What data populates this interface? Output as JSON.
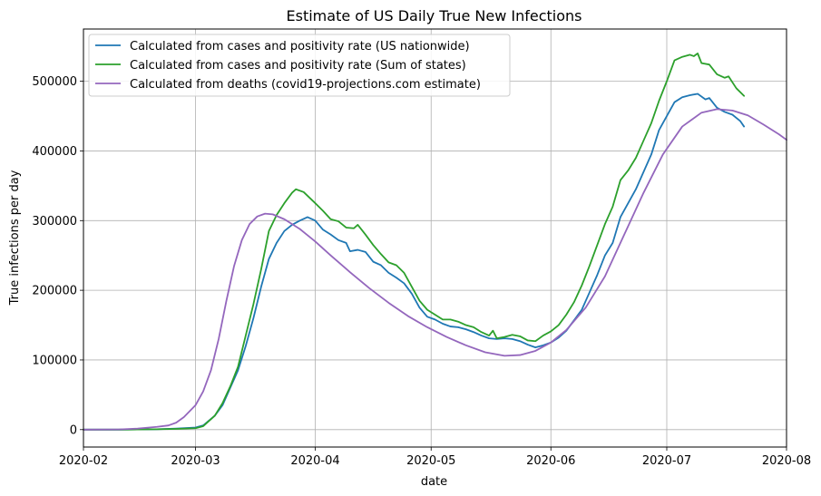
{
  "chart_data": {
    "type": "line",
    "title": "Estimate of US Daily True New Infections",
    "xlabel": "date",
    "ylabel": "True infections per day",
    "xlim": [
      "2020-02-01",
      "2020-08-01"
    ],
    "ylim": [
      -25000,
      575000
    ],
    "grid": true,
    "legend_position": "top-left",
    "x_ticks": [
      "2020-02",
      "2020-03",
      "2020-04",
      "2020-05",
      "2020-06",
      "2020-07",
      "2020-08"
    ],
    "y_ticks": [
      0,
      100000,
      200000,
      300000,
      400000,
      500000
    ],
    "series": [
      {
        "name": "Calculated from cases and positivity rate (US nationwide)",
        "color": "#1f77b4",
        "points": [
          [
            "2020-02-01",
            0
          ],
          [
            "2020-02-10",
            0
          ],
          [
            "2020-02-20",
            500
          ],
          [
            "2020-02-25",
            1500
          ],
          [
            "2020-03-01",
            3000
          ],
          [
            "2020-03-03",
            6000
          ],
          [
            "2020-03-06",
            20000
          ],
          [
            "2020-03-08",
            35000
          ],
          [
            "2020-03-10",
            60000
          ],
          [
            "2020-03-12",
            85000
          ],
          [
            "2020-03-14",
            120000
          ],
          [
            "2020-03-16",
            160000
          ],
          [
            "2020-03-18",
            205000
          ],
          [
            "2020-03-20",
            245000
          ],
          [
            "2020-03-22",
            268000
          ],
          [
            "2020-03-24",
            285000
          ],
          [
            "2020-03-26",
            294000
          ],
          [
            "2020-03-28",
            300000
          ],
          [
            "2020-03-30",
            305000
          ],
          [
            "2020-04-01",
            300000
          ],
          [
            "2020-04-03",
            287000
          ],
          [
            "2020-04-05",
            280000
          ],
          [
            "2020-04-07",
            272000
          ],
          [
            "2020-04-09",
            268000
          ],
          [
            "2020-04-10",
            256000
          ],
          [
            "2020-04-12",
            258000
          ],
          [
            "2020-04-14",
            255000
          ],
          [
            "2020-04-16",
            241000
          ],
          [
            "2020-04-18",
            236000
          ],
          [
            "2020-04-20",
            225000
          ],
          [
            "2020-04-22",
            218000
          ],
          [
            "2020-04-24",
            210000
          ],
          [
            "2020-04-26",
            195000
          ],
          [
            "2020-04-28",
            175000
          ],
          [
            "2020-04-30",
            162000
          ],
          [
            "2020-05-02",
            158000
          ],
          [
            "2020-05-04",
            152000
          ],
          [
            "2020-05-06",
            148000
          ],
          [
            "2020-05-08",
            147000
          ],
          [
            "2020-05-10",
            144000
          ],
          [
            "2020-05-12",
            140000
          ],
          [
            "2020-05-14",
            135000
          ],
          [
            "2020-05-16",
            131000
          ],
          [
            "2020-05-18",
            130000
          ],
          [
            "2020-05-20",
            131000
          ],
          [
            "2020-05-22",
            130000
          ],
          [
            "2020-05-24",
            127000
          ],
          [
            "2020-05-26",
            122000
          ],
          [
            "2020-05-28",
            118000
          ],
          [
            "2020-05-30",
            121000
          ],
          [
            "2020-06-01",
            125000
          ],
          [
            "2020-06-03",
            132000
          ],
          [
            "2020-06-05",
            142000
          ],
          [
            "2020-06-07",
            157000
          ],
          [
            "2020-06-09",
            172000
          ],
          [
            "2020-06-11",
            197000
          ],
          [
            "2020-06-13",
            222000
          ],
          [
            "2020-06-15",
            250000
          ],
          [
            "2020-06-17",
            268000
          ],
          [
            "2020-06-19",
            305000
          ],
          [
            "2020-06-21",
            325000
          ],
          [
            "2020-06-23",
            345000
          ],
          [
            "2020-06-25",
            370000
          ],
          [
            "2020-06-27",
            395000
          ],
          [
            "2020-06-29",
            430000
          ],
          [
            "2020-07-01",
            450000
          ],
          [
            "2020-07-03",
            470000
          ],
          [
            "2020-07-05",
            477000
          ],
          [
            "2020-07-07",
            480000
          ],
          [
            "2020-07-09",
            482000
          ],
          [
            "2020-07-11",
            474000
          ],
          [
            "2020-07-12",
            476000
          ],
          [
            "2020-07-14",
            462000
          ],
          [
            "2020-07-16",
            456000
          ],
          [
            "2020-07-18",
            452000
          ],
          [
            "2020-07-20",
            443000
          ],
          [
            "2020-07-21",
            435000
          ]
        ]
      },
      {
        "name": "Calculated from cases and positivity rate (Sum of states)",
        "color": "#2ca02c",
        "points": [
          [
            "2020-02-01",
            0
          ],
          [
            "2020-02-10",
            0
          ],
          [
            "2020-02-20",
            500
          ],
          [
            "2020-02-25",
            1000
          ],
          [
            "2020-03-01",
            2000
          ],
          [
            "2020-03-03",
            5000
          ],
          [
            "2020-03-06",
            20000
          ],
          [
            "2020-03-08",
            38000
          ],
          [
            "2020-03-10",
            62000
          ],
          [
            "2020-03-12",
            90000
          ],
          [
            "2020-03-14",
            135000
          ],
          [
            "2020-03-16",
            180000
          ],
          [
            "2020-03-18",
            230000
          ],
          [
            "2020-03-20",
            285000
          ],
          [
            "2020-03-22",
            308000
          ],
          [
            "2020-03-24",
            325000
          ],
          [
            "2020-03-26",
            340000
          ],
          [
            "2020-03-27",
            345000
          ],
          [
            "2020-03-29",
            341000
          ],
          [
            "2020-04-01",
            325000
          ],
          [
            "2020-04-03",
            314000
          ],
          [
            "2020-04-05",
            302000
          ],
          [
            "2020-04-07",
            299000
          ],
          [
            "2020-04-09",
            290000
          ],
          [
            "2020-04-11",
            289000
          ],
          [
            "2020-04-12",
            294000
          ],
          [
            "2020-04-14",
            280000
          ],
          [
            "2020-04-16",
            265000
          ],
          [
            "2020-04-18",
            252000
          ],
          [
            "2020-04-20",
            240000
          ],
          [
            "2020-04-22",
            236000
          ],
          [
            "2020-04-24",
            225000
          ],
          [
            "2020-04-26",
            205000
          ],
          [
            "2020-04-28",
            185000
          ],
          [
            "2020-04-30",
            172000
          ],
          [
            "2020-05-02",
            165000
          ],
          [
            "2020-05-04",
            158000
          ],
          [
            "2020-05-06",
            158000
          ],
          [
            "2020-05-08",
            155000
          ],
          [
            "2020-05-10",
            150000
          ],
          [
            "2020-05-12",
            147000
          ],
          [
            "2020-05-14",
            140000
          ],
          [
            "2020-05-16",
            135000
          ],
          [
            "2020-05-17",
            142000
          ],
          [
            "2020-05-18",
            131000
          ],
          [
            "2020-05-20",
            133000
          ],
          [
            "2020-05-22",
            136000
          ],
          [
            "2020-05-24",
            134000
          ],
          [
            "2020-05-26",
            128000
          ],
          [
            "2020-05-28",
            127000
          ],
          [
            "2020-05-30",
            135000
          ],
          [
            "2020-06-01",
            141000
          ],
          [
            "2020-06-03",
            150000
          ],
          [
            "2020-06-05",
            165000
          ],
          [
            "2020-06-07",
            183000
          ],
          [
            "2020-06-09",
            207000
          ],
          [
            "2020-06-11",
            235000
          ],
          [
            "2020-06-13",
            265000
          ],
          [
            "2020-06-15",
            295000
          ],
          [
            "2020-06-17",
            320000
          ],
          [
            "2020-06-19",
            358000
          ],
          [
            "2020-06-21",
            372000
          ],
          [
            "2020-06-23",
            390000
          ],
          [
            "2020-06-25",
            415000
          ],
          [
            "2020-06-27",
            440000
          ],
          [
            "2020-06-29",
            472000
          ],
          [
            "2020-07-01",
            500000
          ],
          [
            "2020-07-03",
            530000
          ],
          [
            "2020-07-05",
            535000
          ],
          [
            "2020-07-07",
            538000
          ],
          [
            "2020-07-08",
            536000
          ],
          [
            "2020-07-09",
            540000
          ],
          [
            "2020-07-10",
            526000
          ],
          [
            "2020-07-12",
            524000
          ],
          [
            "2020-07-14",
            510000
          ],
          [
            "2020-07-16",
            505000
          ],
          [
            "2020-07-17",
            507000
          ],
          [
            "2020-07-19",
            490000
          ],
          [
            "2020-07-21",
            479000
          ]
        ]
      },
      {
        "name": "Calculated from deaths (covid19-projections.com estimate)",
        "color": "#9467bd",
        "points": [
          [
            "2020-02-01",
            0
          ],
          [
            "2020-02-10",
            200
          ],
          [
            "2020-02-15",
            1500
          ],
          [
            "2020-02-20",
            4000
          ],
          [
            "2020-02-23",
            6000
          ],
          [
            "2020-02-25",
            10000
          ],
          [
            "2020-02-27",
            18000
          ],
          [
            "2020-03-01",
            35000
          ],
          [
            "2020-03-03",
            55000
          ],
          [
            "2020-03-05",
            85000
          ],
          [
            "2020-03-07",
            130000
          ],
          [
            "2020-03-09",
            185000
          ],
          [
            "2020-03-11",
            235000
          ],
          [
            "2020-03-13",
            272000
          ],
          [
            "2020-03-15",
            295000
          ],
          [
            "2020-03-17",
            306000
          ],
          [
            "2020-03-19",
            310000
          ],
          [
            "2020-03-21",
            309000
          ],
          [
            "2020-03-24",
            302000
          ],
          [
            "2020-03-28",
            288000
          ],
          [
            "2020-04-01",
            270000
          ],
          [
            "2020-04-05",
            250000
          ],
          [
            "2020-04-10",
            226000
          ],
          [
            "2020-04-15",
            203000
          ],
          [
            "2020-04-20",
            182000
          ],
          [
            "2020-04-25",
            163000
          ],
          [
            "2020-04-30",
            147000
          ],
          [
            "2020-05-05",
            133000
          ],
          [
            "2020-05-10",
            121000
          ],
          [
            "2020-05-15",
            111000
          ],
          [
            "2020-05-20",
            106000
          ],
          [
            "2020-05-24",
            107000
          ],
          [
            "2020-05-28",
            113000
          ],
          [
            "2020-06-01",
            125000
          ],
          [
            "2020-06-05",
            143000
          ],
          [
            "2020-06-10",
            175000
          ],
          [
            "2020-06-15",
            220000
          ],
          [
            "2020-06-20",
            280000
          ],
          [
            "2020-06-25",
            340000
          ],
          [
            "2020-06-30",
            395000
          ],
          [
            "2020-07-05",
            435000
          ],
          [
            "2020-07-10",
            455000
          ],
          [
            "2020-07-14",
            460000
          ],
          [
            "2020-07-18",
            458000
          ],
          [
            "2020-07-22",
            451000
          ],
          [
            "2020-07-26",
            438000
          ],
          [
            "2020-07-30",
            424000
          ],
          [
            "2020-08-01",
            416000
          ]
        ]
      }
    ]
  }
}
